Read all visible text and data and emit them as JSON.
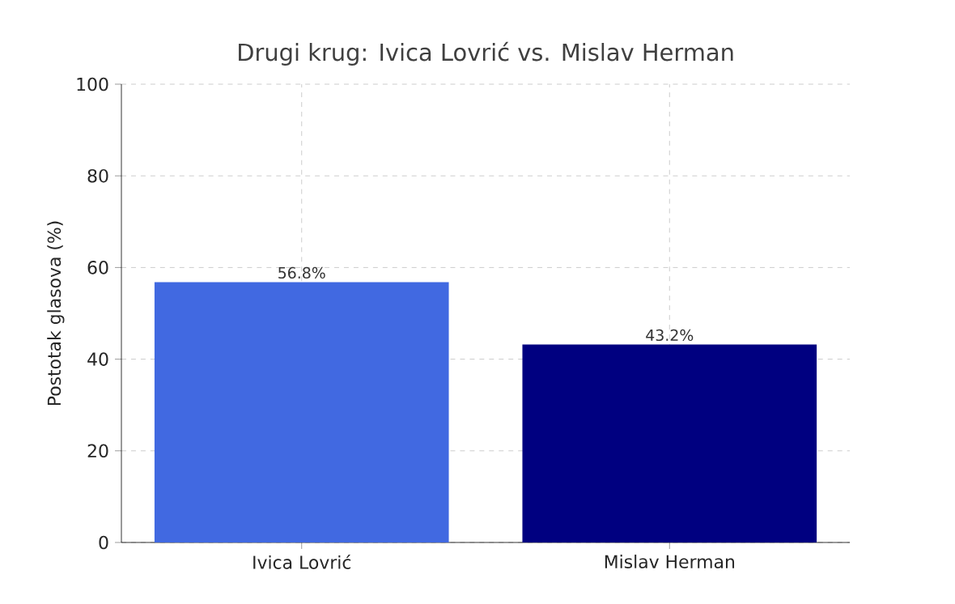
{
  "chart_data": {
    "type": "bar",
    "title": "Drugi krug: Ivica Lovrić vs. Mislav Herman",
    "ylabel": "Postotak glasova (%)",
    "categories": [
      "Ivica Lovrić",
      "Mislav Herman"
    ],
    "values": [
      56.8,
      43.2
    ],
    "colors": [
      "#4169e1",
      "#000080"
    ],
    "value_labels": [
      "56.8%",
      "43.2%"
    ],
    "ylim": [
      0,
      100
    ],
    "yticks": [
      0,
      20,
      40,
      60,
      80,
      100
    ],
    "grid": true
  }
}
